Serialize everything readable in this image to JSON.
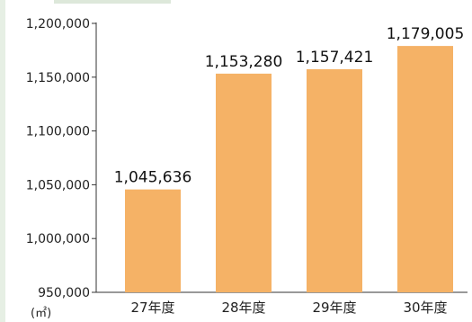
{
  "chart_data": {
    "type": "bar",
    "categories": [
      "27年度",
      "28年度",
      "29年度",
      "30年度"
    ],
    "values": [
      1045636,
      1153280,
      1157421,
      1179005
    ],
    "data_labels": [
      "1,045,636",
      "1,153,280",
      "1,157,421",
      "1,179,005"
    ],
    "y_ticks": [
      950000,
      1000000,
      1050000,
      1100000,
      1150000,
      1200000
    ],
    "y_tick_labels": [
      "950,000",
      "1,000,000",
      "1,050,000",
      "1,100,000",
      "1,150,000",
      "1,200,000"
    ],
    "ylim": [
      950000,
      1200000
    ],
    "unit": "(㎡)",
    "title": "",
    "xlabel": "",
    "ylabel": "",
    "grid": false,
    "colors": {
      "bar": "#F5B266",
      "axis": "#333333",
      "left_band": "#E6EFE4",
      "top_band": "#DDE8DA"
    }
  }
}
